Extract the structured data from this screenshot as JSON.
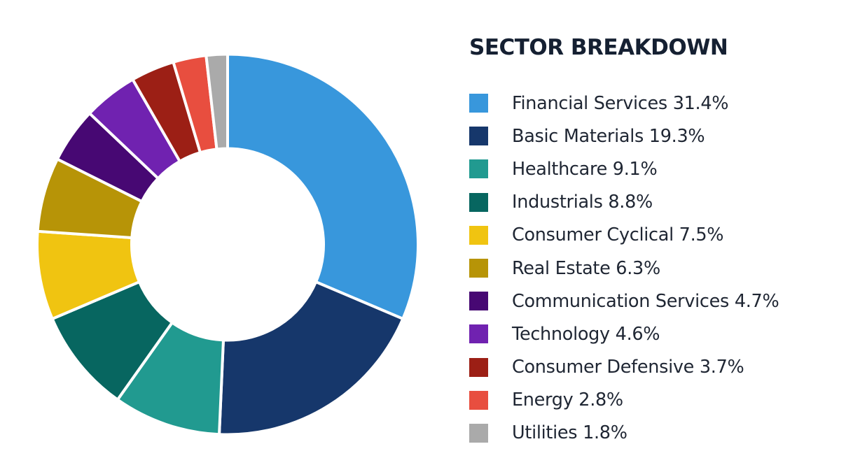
{
  "chart_data": {
    "type": "pie",
    "title": "SECTOR BREAKDOWN",
    "unit": "%",
    "slices": [
      {
        "label": "Financial Services",
        "value": 31.4,
        "color": "#3897dc"
      },
      {
        "label": "Basic Materials",
        "value": 19.3,
        "color": "#16376b"
      },
      {
        "label": "Healthcare",
        "value": 9.1,
        "color": "#219a90"
      },
      {
        "label": "Industrials",
        "value": 8.8,
        "color": "#076660"
      },
      {
        "label": "Consumer Cyclical",
        "value": 7.5,
        "color": "#f0c411"
      },
      {
        "label": "Real Estate",
        "value": 6.3,
        "color": "#b79407"
      },
      {
        "label": "Communication Services",
        "value": 4.7,
        "color": "#470873"
      },
      {
        "label": "Technology",
        "value": 4.6,
        "color": "#7022b0"
      },
      {
        "label": "Consumer Defensive",
        "value": 3.7,
        "color": "#9c1f15"
      },
      {
        "label": "Energy",
        "value": 2.8,
        "color": "#e84e3f"
      },
      {
        "label": "Utilities",
        "value": 1.8,
        "color": "#aaaaaa"
      }
    ],
    "legend_entries": [
      "Financial Services 31.4%",
      "Basic Materials 19.3%",
      "Healthcare 9.1%",
      "Industrials 8.8%",
      "Consumer Cyclical 7.5%",
      "Real Estate 6.3%",
      "Communication Services 4.7%",
      "Technology 4.6%",
      "Consumer Defensive 3.7%",
      "Energy 2.8%",
      "Utilities 1.8%"
    ],
    "legend_position": "right",
    "donut": true
  }
}
